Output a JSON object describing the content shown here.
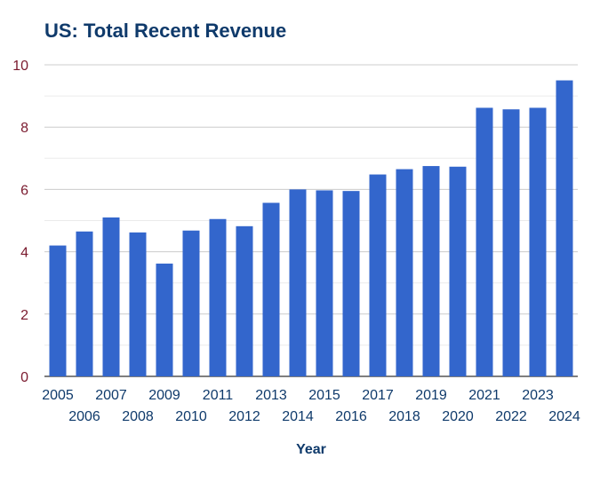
{
  "colors": {
    "title": "#0f3a6b",
    "bar": "#3366cc",
    "y_tick_text": "#7a1a2e",
    "x_tick_text": "#0f3a6b",
    "axis_label": "#0f3a6b",
    "grid_major": "#cccccc",
    "grid_minor": "#ebebeb",
    "baseline": "#333333"
  },
  "chart_data": {
    "type": "bar",
    "title": "US: Total Recent Revenue",
    "xlabel": "Year",
    "ylabel": "",
    "ylim": [
      0,
      10
    ],
    "yticks": [
      0,
      2,
      4,
      6,
      8,
      10
    ],
    "grid": true,
    "categories": [
      "2005",
      "2006",
      "2007",
      "2008",
      "2009",
      "2010",
      "2011",
      "2012",
      "2013",
      "2014",
      "2015",
      "2016",
      "2017",
      "2018",
      "2019",
      "2020",
      "2021",
      "2022",
      "2023",
      "2024"
    ],
    "values": [
      4.2,
      4.65,
      5.1,
      4.62,
      3.62,
      4.68,
      5.05,
      4.82,
      5.57,
      6.0,
      5.97,
      5.95,
      6.48,
      6.65,
      6.75,
      6.73,
      8.62,
      8.57,
      8.62,
      9.5
    ]
  }
}
